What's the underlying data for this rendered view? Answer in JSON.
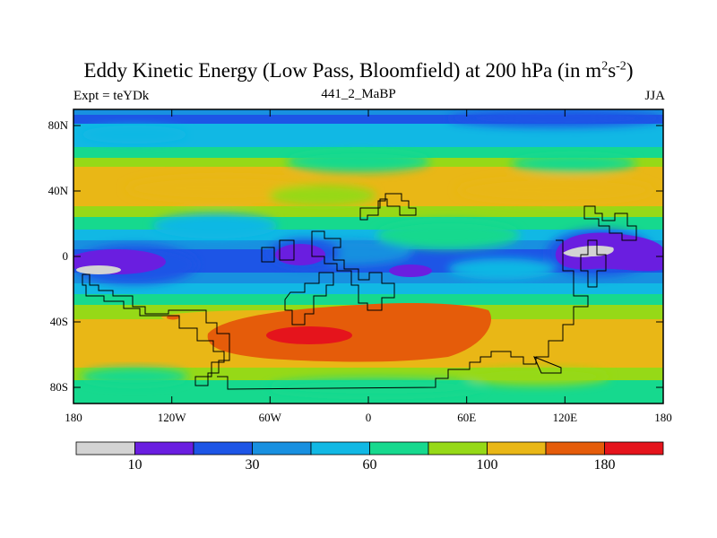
{
  "title": {
    "main": "Eddy Kinetic Energy (Low Pass, Bloomfield) at 200 hPa (in m",
    "exp1": "2",
    "mid": "s",
    "exp2": "-2",
    "close": ")"
  },
  "subtitle": {
    "left": "Expt = teYDk",
    "center": "441_2_MaBP",
    "right": "JJA"
  },
  "map": {
    "lat_labels": [
      "80N",
      "40N",
      "0",
      "40S",
      "80S"
    ],
    "lon_labels": [
      "180",
      "120W",
      "60W",
      "0",
      "60E",
      "120E",
      "180"
    ]
  },
  "colorbar": {
    "colors": [
      "#d3d3d3",
      "#6a1ee0",
      "#1d55e6",
      "#1890e0",
      "#11b8e4",
      "#16d98e",
      "#96d917",
      "#e9b716",
      "#e55c0a",
      "#e5141c"
    ],
    "labels": [
      {
        "text": "10",
        "boundary": 1
      },
      {
        "text": "30",
        "boundary": 3
      },
      {
        "text": "60",
        "boundary": 5
      },
      {
        "text": "100",
        "boundary": 7
      },
      {
        "text": "180",
        "boundary": 9
      }
    ]
  }
}
